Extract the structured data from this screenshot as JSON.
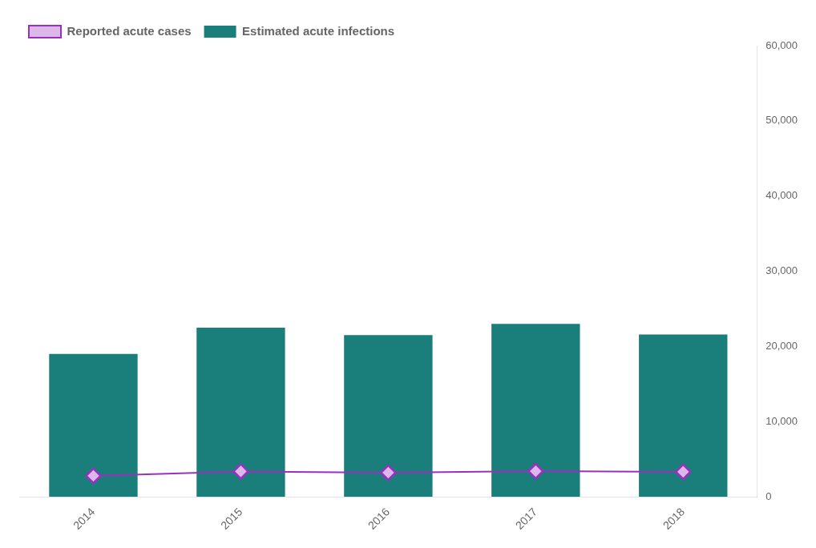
{
  "chart_data": {
    "type": "bar",
    "categories": [
      "2014",
      "2015",
      "2016",
      "2017",
      "2018"
    ],
    "series": [
      {
        "name": "Reported acute cases",
        "type": "line",
        "color": "#9b30c0",
        "marker": "diamond",
        "values": [
          2791,
          3370,
          3218,
          3407,
          3322
        ]
      },
      {
        "name": "Estimated acute infections",
        "type": "bar",
        "color": "#1a7f7a",
        "values": [
          19000,
          22500,
          21500,
          23000,
          21600
        ]
      }
    ],
    "ylim": [
      0,
      60000
    ],
    "yticks": [
      0,
      {
        "value": 10000,
        "label": "10,000"
      },
      {
        "value": 20000,
        "label": "20,000"
      },
      {
        "value": 30000,
        "label": "30,000"
      },
      {
        "value": 40000,
        "label": "40,000"
      },
      {
        "value": 50000,
        "label": "50,000"
      },
      {
        "value": 60000,
        "label": "60,000"
      }
    ],
    "grid": false,
    "legend": "upper left"
  }
}
